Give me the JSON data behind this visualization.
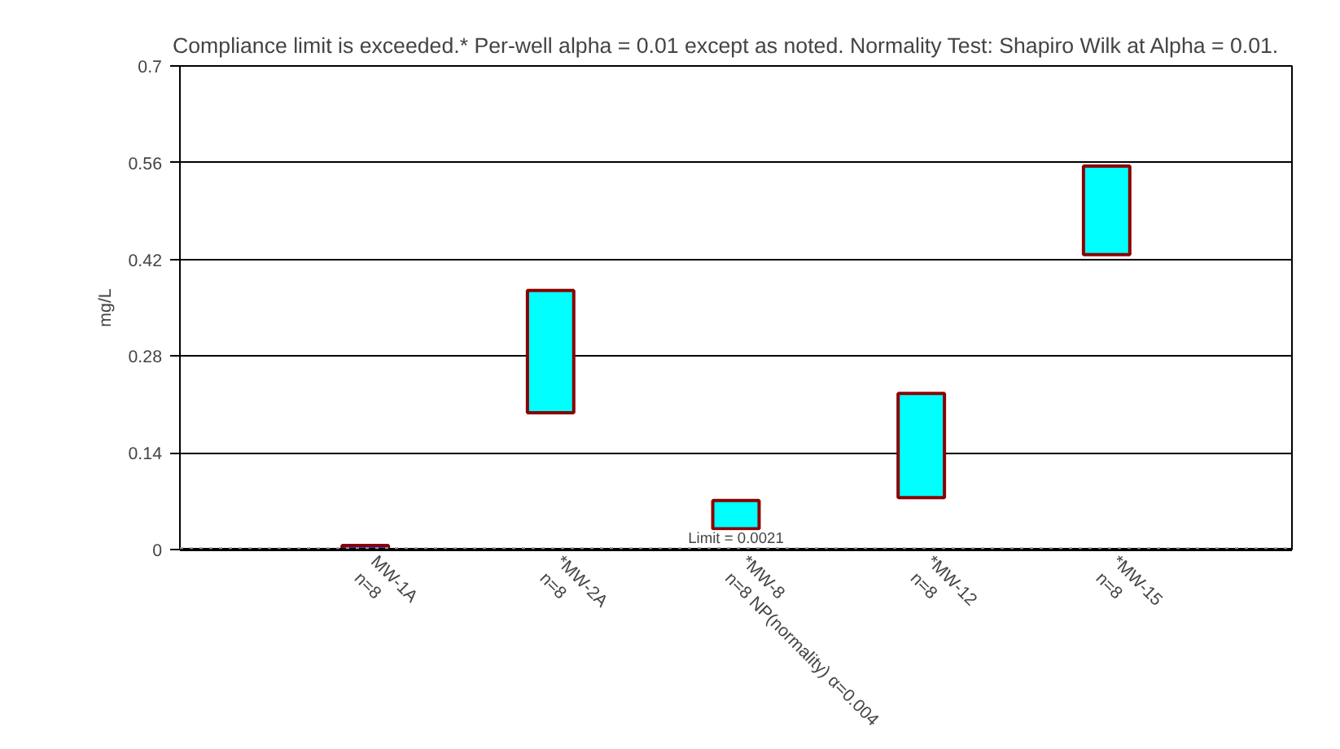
{
  "chart_data": {
    "type": "bar",
    "title": "Compliance limit is exceeded.*  Per-well alpha = 0.01 except as noted.  Normality Test: Shapiro Wilk at Alpha = 0.01.",
    "ylabel": "mg/L",
    "categories": [
      "MW-1A\nn=8",
      "*MW-2A\nn=8",
      "*MW-8\nn=8 NP(normality) α=0.004",
      "*MW-12\nn=8",
      "*MW-15\nn=8"
    ],
    "base": [
      0,
      0.198,
      0.03,
      0.075,
      0.427
    ],
    "values": [
      0.006,
      0.177,
      0.041,
      0.151,
      0.128
    ],
    "colors": [
      "#3333ff",
      "#00ffff",
      "#00ffff",
      "#00ffff",
      "#00ffff"
    ],
    "ylim": [
      0,
      0.7
    ],
    "yticks": [
      0,
      0.14,
      0.28,
      0.42,
      0.56,
      0.7
    ],
    "ref_lines": [
      {
        "axis": "y",
        "value": 0.0021,
        "label": "Limit = 0.0021",
        "color": "#999999",
        "line_style": "dotted"
      }
    ],
    "grid": "y"
  }
}
